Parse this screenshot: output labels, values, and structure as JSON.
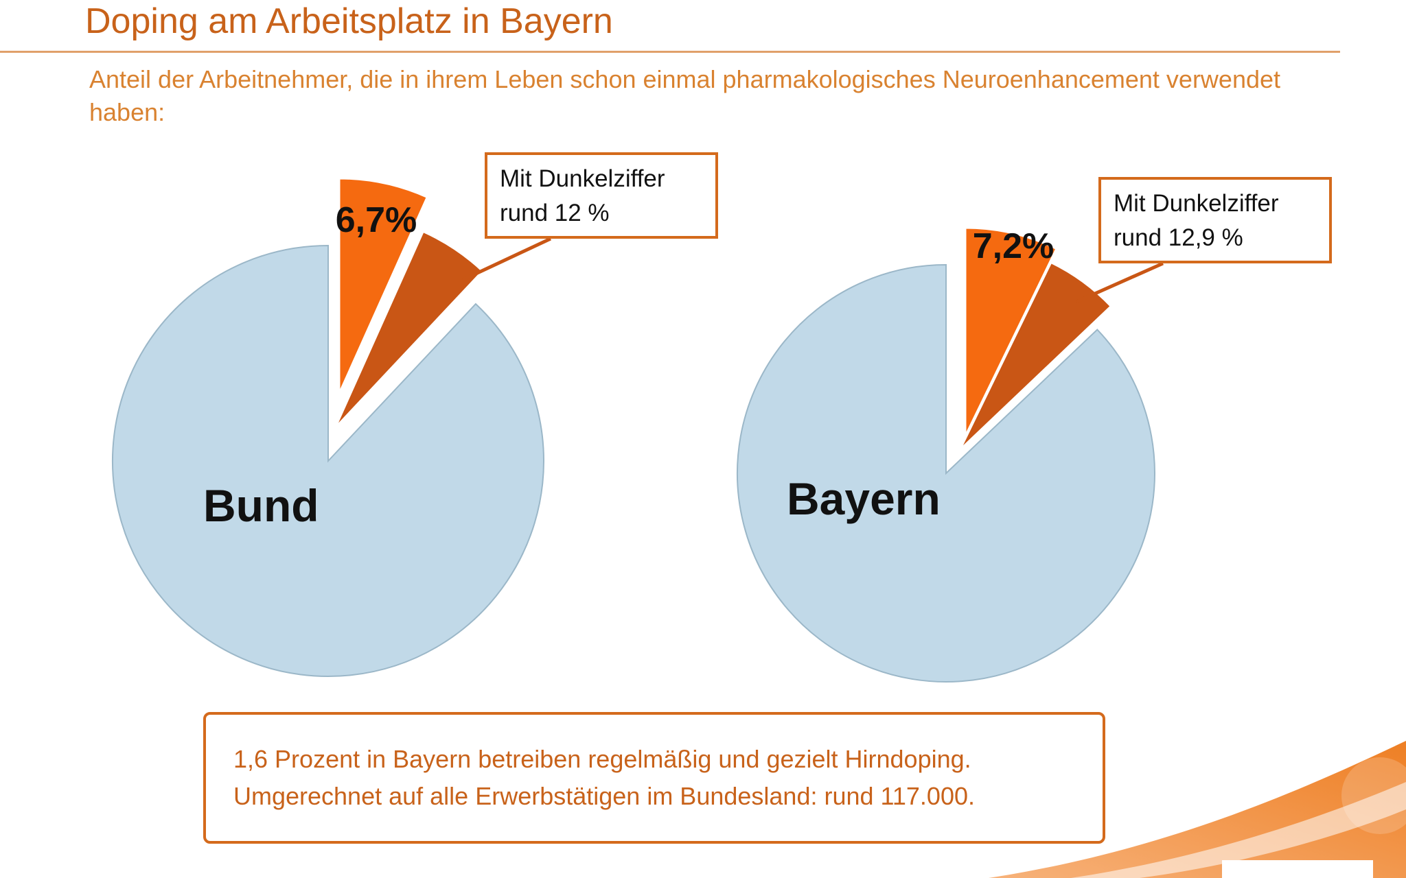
{
  "header": {
    "title": "Doping am Arbeitsplatz in Bayern",
    "subtitle": "Anteil der Arbeitnehmer, die in ihrem Leben schon einmal pharmakologisches Neuroenhancement verwendet haben:"
  },
  "chart_data": [
    {
      "type": "pie",
      "label": "Bund",
      "slices": [
        {
          "name": "",
          "value": 6.7,
          "value_label": "6,7%",
          "color": "#f56a10",
          "exploded": true
        },
        {
          "name": "",
          "value": 5.3,
          "color": "#c95615",
          "exploded": true
        },
        {
          "name": "",
          "value": 88.0,
          "color": "#c1d9e8",
          "exploded": false
        }
      ],
      "callout": {
        "line1": "Mit Dunkelziffer",
        "line2": "rund 12 %"
      }
    },
    {
      "type": "pie",
      "label": "Bayern",
      "slices": [
        {
          "name": "",
          "value": 7.2,
          "value_label": "7,2%",
          "color": "#f56a10",
          "exploded": true
        },
        {
          "name": "",
          "value": 5.7,
          "color": "#c95615",
          "exploded": true
        },
        {
          "name": "",
          "value": 87.1,
          "color": "#c1d9e8",
          "exploded": false
        }
      ],
      "callout": {
        "line1": "Mit Dunkelziffer",
        "line2": "rund 12,9 %"
      }
    }
  ],
  "note": {
    "line1": "1,6 Prozent in Bayern betreiben regelmäßig und gezielt Hirndoping.",
    "line2": "Umgerechnet auf alle Erwerbstätigen im Bundesland: rund 117.000."
  },
  "colors": {
    "accent": "#d46a1c",
    "title": "#c8621a",
    "pie_base": "#c1d9e8",
    "pie_highlight": "#f56a10",
    "pie_dark": "#c95615"
  }
}
